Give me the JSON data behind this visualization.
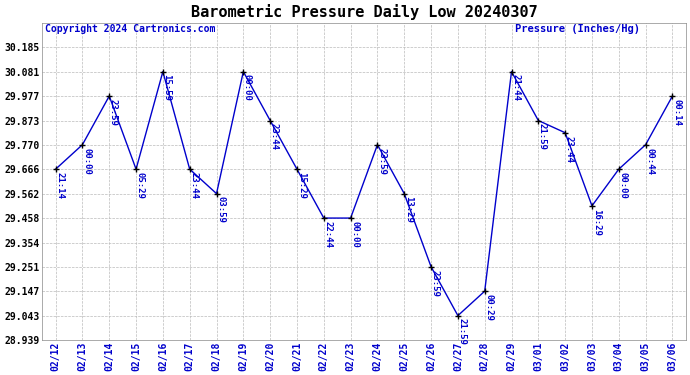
{
  "title": "Barometric Pressure Daily Low 20240307",
  "ylabel": "Pressure (Inches/Hg)",
  "copyright": "Copyright 2024 Cartronics.com",
  "dates": [
    "02/12",
    "02/13",
    "02/14",
    "02/15",
    "02/16",
    "02/17",
    "02/18",
    "02/19",
    "02/20",
    "02/21",
    "02/22",
    "02/23",
    "02/24",
    "02/25",
    "02/26",
    "02/27",
    "02/28",
    "02/29",
    "03/01",
    "03/02",
    "03/03",
    "03/04",
    "03/05",
    "03/06"
  ],
  "values": [
    29.666,
    29.77,
    29.977,
    29.666,
    30.081,
    29.666,
    29.562,
    30.081,
    29.873,
    29.666,
    29.458,
    29.458,
    29.77,
    29.562,
    29.251,
    29.043,
    29.147,
    30.081,
    29.873,
    29.821,
    29.51,
    29.666,
    29.77,
    29.977
  ],
  "times": [
    "21:14",
    "00:00",
    "23:59",
    "05:29",
    "15:59",
    "23:44",
    "03:59",
    "00:00",
    "23:44",
    "15:29",
    "22:44",
    "00:00",
    "23:59",
    "13:29",
    "23:59",
    "21:59",
    "00:29",
    "21:44",
    "21:59",
    "23:44",
    "16:29",
    "00:00",
    "00:44",
    "00:14"
  ],
  "ylim_min": 28.939,
  "ylim_max": 30.289,
  "yticks": [
    30.185,
    30.081,
    29.977,
    29.873,
    29.77,
    29.666,
    29.562,
    29.458,
    29.354,
    29.251,
    29.147,
    29.043,
    28.939
  ],
  "line_color": "#0000cc",
  "marker_color": "#000000",
  "bg_color": "#ffffff",
  "grid_color": "#bbbbbb",
  "title_fontsize": 11,
  "label_fontsize": 7,
  "annot_fontsize": 6.5,
  "copyright_fontsize": 7
}
